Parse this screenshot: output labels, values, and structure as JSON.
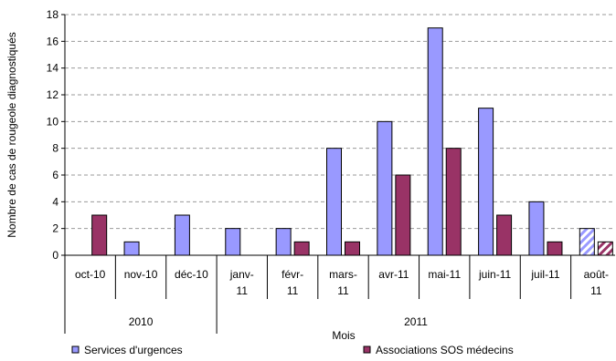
{
  "chart_data": {
    "type": "bar",
    "ylabel": "Nombre de cas de rougeole diagnostiqués",
    "xlabel": "Mois",
    "ylim": [
      0,
      18
    ],
    "yticks": [
      0,
      2,
      4,
      6,
      8,
      10,
      12,
      14,
      16,
      18
    ],
    "grid": true,
    "legend_position": "bottom",
    "categories": [
      [
        "oct-10"
      ],
      [
        "nov-10"
      ],
      [
        "déc-10"
      ],
      [
        "janv-",
        "11"
      ],
      [
        "févr-",
        "11"
      ],
      [
        "mars-",
        "11"
      ],
      [
        "avr-11"
      ],
      [
        "mai-11"
      ],
      [
        "juin-11"
      ],
      [
        "juil-11"
      ],
      [
        "août-",
        "11"
      ]
    ],
    "year_groups": [
      {
        "label": "2010",
        "start": 0,
        "end": 2
      },
      {
        "label": "2011",
        "start": 3,
        "end": 10
      }
    ],
    "series": [
      {
        "name": "Services d'urgences",
        "color": "#9999ff",
        "values": [
          0,
          1,
          3,
          2,
          2,
          8,
          10,
          17,
          11,
          4,
          2
        ]
      },
      {
        "name": "Associations SOS médecins",
        "color": "#993366",
        "values": [
          3,
          0,
          0,
          0,
          1,
          1,
          6,
          8,
          3,
          1,
          1
        ]
      }
    ],
    "hatched_category": "août-11"
  }
}
